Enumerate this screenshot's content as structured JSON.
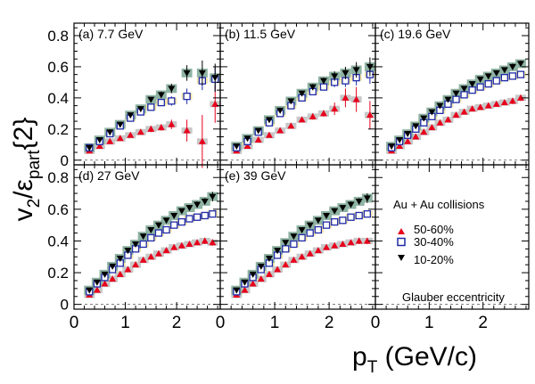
{
  "figure": {
    "ylabel": {
      "main": "v",
      "sub": "2",
      "slash": "/",
      "eps": "ε",
      "eps_sub": "part",
      "brace": "{2}"
    },
    "xlabel": {
      "main": "p",
      "sub": "T",
      "rest": " (GeV/c)"
    },
    "legend": {
      "title": "Au + Au collisions",
      "entries": [
        "50-60%",
        "30-40%",
        "10-20%"
      ],
      "note": "Glauber eccentricity"
    },
    "y_ticks": [
      "0",
      "0.2",
      "0.4",
      "0.6",
      "0.8"
    ],
    "x_ticks": [
      "0",
      "1",
      "2"
    ]
  },
  "colors": {
    "c5060": "#e8001c",
    "c3040": "#1f2aa8",
    "c1020": "#000000",
    "sys1020": "#8fb3a3",
    "sys3040": "#f4e5a8",
    "sys5060": "#c8c8c8"
  },
  "chart_data": [
    {
      "type": "scatter",
      "label": "(a) 7.7 GeV",
      "xlim": [
        0,
        2.85
      ],
      "ylim": [
        -0.03,
        0.88
      ],
      "x": [
        0.3,
        0.5,
        0.7,
        0.9,
        1.1,
        1.3,
        1.5,
        1.7,
        1.9,
        2.2,
        2.5,
        2.75
      ],
      "series": [
        {
          "name": "50-60%",
          "values": [
            0.06,
            0.09,
            0.12,
            0.14,
            0.16,
            0.18,
            0.2,
            0.21,
            0.23,
            0.19,
            0.12,
            0.36
          ],
          "err": [
            0.01,
            0.01,
            0.01,
            0.01,
            0.01,
            0.01,
            0.02,
            0.02,
            0.03,
            0.07,
            0.17,
            0.12
          ]
        },
        {
          "name": "30-40%",
          "values": [
            0.08,
            0.12,
            0.17,
            0.22,
            0.27,
            0.31,
            0.34,
            0.37,
            0.38,
            0.41,
            0.51,
            0.52
          ],
          "err": [
            0.005,
            0.005,
            0.005,
            0.01,
            0.01,
            0.01,
            0.01,
            0.02,
            0.03,
            0.05,
            0.06,
            0.08
          ]
        },
        {
          "name": "10-20%",
          "values": [
            0.08,
            0.13,
            0.18,
            0.23,
            0.29,
            0.33,
            0.39,
            0.42,
            0.46,
            0.56,
            0.56,
            0.53
          ],
          "err": [
            0.005,
            0.005,
            0.005,
            0.01,
            0.01,
            0.01,
            0.01,
            0.02,
            0.03,
            0.05,
            0.08,
            0.09
          ]
        }
      ]
    },
    {
      "type": "scatter",
      "label": "(b) 11.5 GeV",
      "xlim": [
        0,
        2.85
      ],
      "ylim": [
        -0.03,
        0.88
      ],
      "x": [
        0.3,
        0.5,
        0.7,
        0.9,
        1.1,
        1.3,
        1.5,
        1.7,
        1.9,
        2.1,
        2.3,
        2.5,
        2.75
      ],
      "series": [
        {
          "name": "50-60%",
          "values": [
            0.06,
            0.09,
            0.13,
            0.16,
            0.19,
            0.22,
            0.26,
            0.28,
            0.3,
            0.33,
            0.4,
            0.39,
            0.29
          ],
          "err": [
            0.01,
            0.01,
            0.01,
            0.01,
            0.01,
            0.01,
            0.01,
            0.02,
            0.02,
            0.04,
            0.06,
            0.08,
            0.09
          ]
        },
        {
          "name": "30-40%",
          "values": [
            0.08,
            0.12,
            0.18,
            0.24,
            0.3,
            0.35,
            0.4,
            0.44,
            0.47,
            0.5,
            0.51,
            0.53,
            0.55
          ],
          "err": [
            0.005,
            0.005,
            0.005,
            0.01,
            0.01,
            0.01,
            0.01,
            0.02,
            0.02,
            0.03,
            0.04,
            0.05,
            0.06
          ]
        },
        {
          "name": "10-20%",
          "values": [
            0.09,
            0.14,
            0.19,
            0.26,
            0.32,
            0.38,
            0.43,
            0.47,
            0.51,
            0.54,
            0.56,
            0.58,
            0.6
          ],
          "err": [
            0.005,
            0.005,
            0.005,
            0.01,
            0.01,
            0.01,
            0.01,
            0.02,
            0.02,
            0.03,
            0.04,
            0.05,
            0.06
          ]
        }
      ]
    },
    {
      "type": "scatter",
      "label": "(c) 19.6 GeV",
      "xlim": [
        0,
        2.85
      ],
      "ylim": [
        -0.03,
        0.88
      ],
      "x": [
        0.3,
        0.45,
        0.6,
        0.75,
        0.9,
        1.05,
        1.2,
        1.35,
        1.5,
        1.65,
        1.8,
        1.95,
        2.1,
        2.25,
        2.4,
        2.55,
        2.7
      ],
      "series": [
        {
          "name": "50-60%",
          "values": [
            0.06,
            0.09,
            0.12,
            0.15,
            0.18,
            0.21,
            0.24,
            0.26,
            0.29,
            0.31,
            0.33,
            0.34,
            0.35,
            0.36,
            0.37,
            0.38,
            0.4
          ],
          "err": [
            0.01,
            0.01,
            0.01,
            0.01,
            0.01,
            0.01,
            0.01,
            0.01,
            0.01,
            0.01,
            0.01,
            0.01,
            0.01,
            0.015,
            0.015,
            0.02,
            0.02
          ]
        },
        {
          "name": "30-40%",
          "values": [
            0.08,
            0.12,
            0.16,
            0.2,
            0.24,
            0.28,
            0.32,
            0.36,
            0.39,
            0.42,
            0.45,
            0.47,
            0.49,
            0.51,
            0.53,
            0.54,
            0.55
          ],
          "err": [
            0.005,
            0.005,
            0.005,
            0.005,
            0.01,
            0.01,
            0.01,
            0.01,
            0.01,
            0.01,
            0.01,
            0.01,
            0.01,
            0.015,
            0.015,
            0.02,
            0.02
          ]
        },
        {
          "name": "10-20%",
          "values": [
            0.09,
            0.13,
            0.17,
            0.22,
            0.27,
            0.31,
            0.35,
            0.39,
            0.43,
            0.46,
            0.49,
            0.52,
            0.54,
            0.56,
            0.58,
            0.6,
            0.62
          ],
          "err": [
            0.005,
            0.005,
            0.005,
            0.005,
            0.01,
            0.01,
            0.01,
            0.01,
            0.01,
            0.01,
            0.01,
            0.01,
            0.01,
            0.015,
            0.015,
            0.02,
            0.02
          ]
        }
      ]
    },
    {
      "type": "scatter",
      "label": "(d) 27 GeV",
      "xlim": [
        0,
        2.85
      ],
      "ylim": [
        -0.03,
        0.88
      ],
      "x": [
        0.3,
        0.45,
        0.6,
        0.75,
        0.9,
        1.05,
        1.2,
        1.35,
        1.5,
        1.65,
        1.8,
        1.95,
        2.1,
        2.25,
        2.4,
        2.55,
        2.7
      ],
      "series": [
        {
          "name": "50-60%",
          "values": [
            0.06,
            0.09,
            0.13,
            0.16,
            0.19,
            0.22,
            0.25,
            0.28,
            0.3,
            0.32,
            0.34,
            0.36,
            0.37,
            0.38,
            0.39,
            0.4,
            0.39
          ],
          "err": [
            0.01,
            0.01,
            0.01,
            0.01,
            0.01,
            0.01,
            0.01,
            0.01,
            0.01,
            0.01,
            0.01,
            0.01,
            0.01,
            0.015,
            0.015,
            0.02,
            0.02
          ]
        },
        {
          "name": "30-40%",
          "values": [
            0.08,
            0.13,
            0.17,
            0.22,
            0.26,
            0.31,
            0.35,
            0.38,
            0.42,
            0.45,
            0.47,
            0.5,
            0.52,
            0.54,
            0.55,
            0.56,
            0.57
          ],
          "err": [
            0.005,
            0.005,
            0.005,
            0.005,
            0.01,
            0.01,
            0.01,
            0.01,
            0.01,
            0.01,
            0.01,
            0.01,
            0.01,
            0.015,
            0.015,
            0.02,
            0.02
          ]
        },
        {
          "name": "10-20%",
          "values": [
            0.09,
            0.14,
            0.19,
            0.24,
            0.29,
            0.34,
            0.38,
            0.43,
            0.47,
            0.5,
            0.53,
            0.56,
            0.59,
            0.61,
            0.63,
            0.65,
            0.68
          ],
          "err": [
            0.005,
            0.005,
            0.005,
            0.005,
            0.01,
            0.01,
            0.01,
            0.01,
            0.01,
            0.01,
            0.01,
            0.01,
            0.015,
            0.015,
            0.02,
            0.02,
            0.03
          ]
        }
      ]
    },
    {
      "type": "scatter",
      "label": "(e) 39 GeV",
      "xlim": [
        0,
        2.85
      ],
      "ylim": [
        -0.03,
        0.88
      ],
      "x": [
        0.3,
        0.45,
        0.6,
        0.75,
        0.9,
        1.05,
        1.2,
        1.35,
        1.5,
        1.65,
        1.8,
        1.95,
        2.1,
        2.25,
        2.4,
        2.55,
        2.7
      ],
      "series": [
        {
          "name": "50-60%",
          "values": [
            0.06,
            0.09,
            0.13,
            0.16,
            0.19,
            0.22,
            0.25,
            0.28,
            0.3,
            0.32,
            0.34,
            0.36,
            0.37,
            0.38,
            0.39,
            0.4,
            0.4
          ],
          "err": [
            0.01,
            0.01,
            0.01,
            0.01,
            0.01,
            0.01,
            0.01,
            0.01,
            0.01,
            0.01,
            0.01,
            0.01,
            0.01,
            0.015,
            0.015,
            0.02,
            0.02
          ]
        },
        {
          "name": "30-40%",
          "values": [
            0.08,
            0.13,
            0.17,
            0.22,
            0.26,
            0.31,
            0.35,
            0.38,
            0.42,
            0.45,
            0.47,
            0.5,
            0.52,
            0.53,
            0.55,
            0.56,
            0.57
          ],
          "err": [
            0.005,
            0.005,
            0.005,
            0.005,
            0.01,
            0.01,
            0.01,
            0.01,
            0.01,
            0.01,
            0.01,
            0.01,
            0.01,
            0.015,
            0.015,
            0.02,
            0.02
          ]
        },
        {
          "name": "10-20%",
          "values": [
            0.09,
            0.14,
            0.19,
            0.24,
            0.29,
            0.34,
            0.39,
            0.43,
            0.47,
            0.5,
            0.53,
            0.56,
            0.59,
            0.61,
            0.63,
            0.65,
            0.67
          ],
          "err": [
            0.005,
            0.005,
            0.005,
            0.005,
            0.01,
            0.01,
            0.01,
            0.01,
            0.01,
            0.01,
            0.01,
            0.01,
            0.015,
            0.015,
            0.02,
            0.02,
            0.03
          ]
        }
      ]
    }
  ]
}
